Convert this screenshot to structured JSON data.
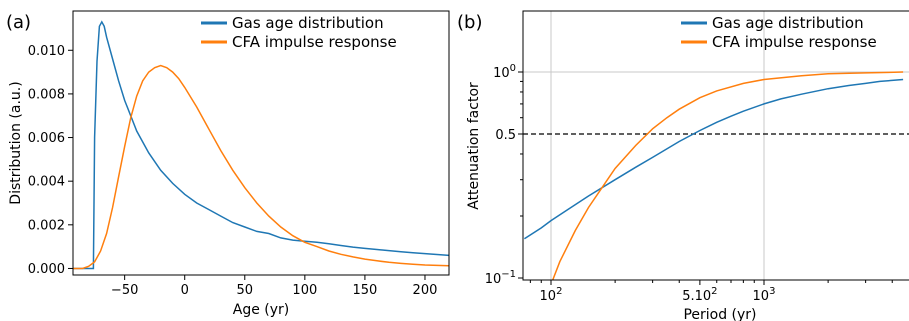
{
  "chart_data": [
    {
      "panel_label": "(a)",
      "type": "line",
      "xlabel": "Age (yr)",
      "ylabel": "Distribution (a.u.)",
      "xlim": [
        -93,
        220
      ],
      "ylim": [
        -0.0003,
        0.0118
      ],
      "xticks": [
        -50,
        0,
        50,
        100,
        150,
        200
      ],
      "xtick_labels": [
        "−50",
        "0",
        "50",
        "100",
        "150",
        "200"
      ],
      "yticks": [
        0.0,
        0.002,
        0.004,
        0.006,
        0.008,
        0.01
      ],
      "ytick_labels": [
        "0.000",
        "0.002",
        "0.004",
        "0.006",
        "0.008",
        "0.010"
      ],
      "legend_position": "top-right",
      "series": [
        {
          "name": "Gas age distribution",
          "color": "#1f77b4",
          "x": [
            -93,
            -76,
            -75,
            -73,
            -71,
            -69,
            -67,
            -65,
            -60,
            -55,
            -50,
            -40,
            -30,
            -20,
            -10,
            0,
            10,
            20,
            30,
            40,
            50,
            60,
            70,
            80,
            90,
            100,
            110,
            120,
            130,
            140,
            150,
            160,
            170,
            180,
            190,
            200,
            210,
            220
          ],
          "y": [
            0.0,
            0.0,
            0.006,
            0.0095,
            0.0111,
            0.0113,
            0.0111,
            0.0106,
            0.0096,
            0.0086,
            0.0077,
            0.0063,
            0.0053,
            0.0045,
            0.0039,
            0.0034,
            0.003,
            0.0027,
            0.0024,
            0.0021,
            0.0019,
            0.0017,
            0.0016,
            0.0014,
            0.0013,
            0.00125,
            0.0012,
            0.00113,
            0.00105,
            0.00098,
            0.00092,
            0.00087,
            0.00082,
            0.00077,
            0.00072,
            0.00068,
            0.00064,
            0.0006
          ]
        },
        {
          "name": "CFA impulse response",
          "color": "#ff7f0e",
          "x": [
            -93,
            -85,
            -80,
            -75,
            -70,
            -65,
            -60,
            -55,
            -50,
            -45,
            -40,
            -35,
            -30,
            -25,
            -20,
            -15,
            -10,
            -5,
            0,
            10,
            20,
            30,
            40,
            50,
            60,
            70,
            80,
            90,
            100,
            110,
            120,
            130,
            140,
            150,
            160,
            170,
            180,
            190,
            200,
            210,
            220
          ],
          "y": [
            0.0,
            0.0,
            0.0001,
            0.0003,
            0.0008,
            0.0016,
            0.0028,
            0.0042,
            0.0056,
            0.0069,
            0.0079,
            0.0086,
            0.009,
            0.0092,
            0.0093,
            0.0092,
            0.009,
            0.0087,
            0.0083,
            0.0074,
            0.0064,
            0.0054,
            0.0045,
            0.0037,
            0.003,
            0.0024,
            0.0019,
            0.0015,
            0.0012,
            0.001,
            0.0008,
            0.00065,
            0.00053,
            0.00043,
            0.00035,
            0.00028,
            0.00023,
            0.00019,
            0.00016,
            0.00014,
            0.00012
          ]
        }
      ]
    },
    {
      "panel_label": "(b)",
      "type": "line",
      "xscale": "log",
      "yscale": "log",
      "xlabel": "Period (yr)",
      "ylabel": "Attenuation factor",
      "xlim": [
        75,
        4500
      ],
      "ylim": [
        0.093,
        1.85
      ],
      "grid": true,
      "xticks": [
        100,
        500,
        1000
      ],
      "xtick_labels": [
        "10^2",
        "5.10^2",
        "10^3"
      ],
      "x_minor_ticks": [
        80,
        90,
        200,
        300,
        400,
        600,
        700,
        800,
        900,
        2000,
        3000,
        4000
      ],
      "yticks": [
        0.1,
        0.5,
        1.0
      ],
      "ytick_labels": [
        "10^-1",
        "0.5",
        "10^0"
      ],
      "y_minor_ticks": [
        0.2,
        0.3,
        0.4,
        0.6,
        0.7,
        0.8,
        0.9
      ],
      "hline": {
        "y": 0.5,
        "style": "dashed",
        "color": "#000000"
      },
      "legend_position": "top-right",
      "series": [
        {
          "name": "Gas age distribution",
          "color": "#1f77b4",
          "x": [
            75,
            90,
            100,
            120,
            150,
            200,
            250,
            300,
            400,
            500,
            600,
            700,
            800,
            1000,
            1200,
            1500,
            2000,
            2500,
            3000,
            3500,
            4000,
            4500
          ],
          "y": [
            0.155,
            0.175,
            0.19,
            0.215,
            0.25,
            0.3,
            0.345,
            0.385,
            0.46,
            0.52,
            0.57,
            0.61,
            0.645,
            0.7,
            0.74,
            0.78,
            0.83,
            0.86,
            0.88,
            0.9,
            0.91,
            0.92
          ]
        },
        {
          "name": "CFA impulse response",
          "color": "#ff7f0e",
          "x": [
            100,
            110,
            130,
            150,
            180,
            200,
            250,
            300,
            350,
            400,
            500,
            600,
            800,
            1000,
            1500,
            2000,
            3000,
            4500
          ],
          "y": [
            0.093,
            0.12,
            0.17,
            0.22,
            0.29,
            0.34,
            0.44,
            0.53,
            0.6,
            0.66,
            0.75,
            0.81,
            0.88,
            0.92,
            0.96,
            0.98,
            0.99,
            1.0
          ]
        }
      ]
    }
  ]
}
